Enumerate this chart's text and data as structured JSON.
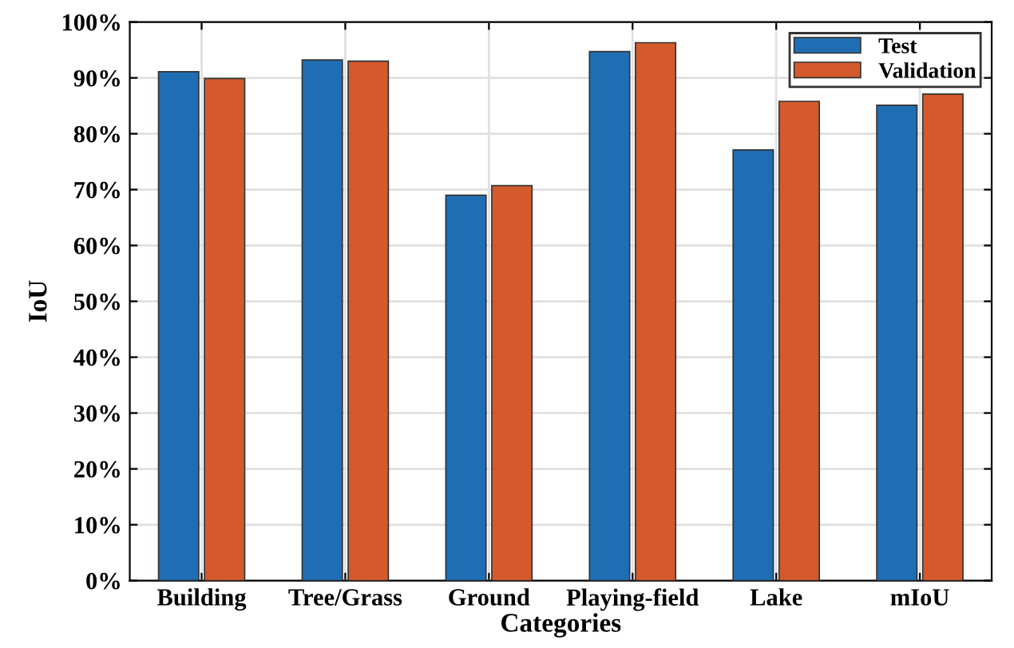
{
  "chart_data": {
    "type": "bar",
    "xlabel": "Categories",
    "ylabel": "IoU",
    "categories": [
      "Building",
      "Tree/Grass",
      "Ground",
      "Playing-field",
      "Lake",
      "mIoU"
    ],
    "series": [
      {
        "name": "Test",
        "color": "#1f6eb4",
        "values": [
          91.1,
          93.2,
          69.0,
          94.7,
          77.1,
          85.1
        ]
      },
      {
        "name": "Validation",
        "color": "#d45a2c",
        "values": [
          89.9,
          93.0,
          70.7,
          96.3,
          85.8,
          87.1
        ]
      }
    ],
    "ylim": [
      0,
      100
    ],
    "yticks": [
      {
        "value": 0,
        "label": "0%"
      },
      {
        "value": 10,
        "label": "10%"
      },
      {
        "value": 20,
        "label": "20%"
      },
      {
        "value": 30,
        "label": "30%"
      },
      {
        "value": 40,
        "label": "40%"
      },
      {
        "value": 50,
        "label": "50%"
      },
      {
        "value": 60,
        "label": "60%"
      },
      {
        "value": 70,
        "label": "70%"
      },
      {
        "value": 80,
        "label": "80%"
      },
      {
        "value": 90,
        "label": "90%"
      },
      {
        "value": 100,
        "label": "100%"
      }
    ],
    "grid": true,
    "legend": "top right"
  }
}
